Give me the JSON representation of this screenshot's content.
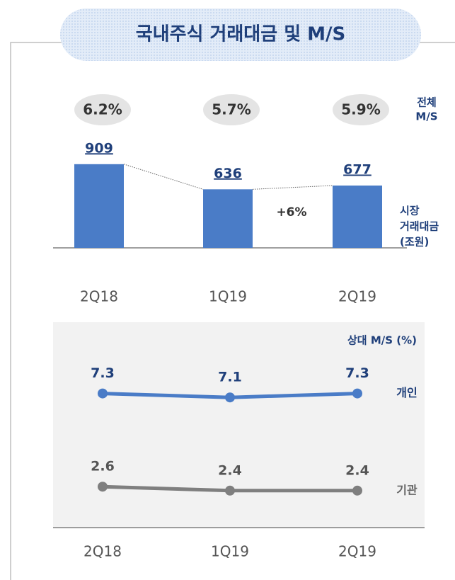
{
  "title": "국내주식 거래대금 및 M/S",
  "chart_data": [
    {
      "type": "bar",
      "categories": [
        "2Q18",
        "1Q19",
        "2Q19"
      ],
      "values": [
        909,
        636,
        677
      ],
      "color": "#4a7cc7",
      "ms_values": [
        6.2,
        5.7,
        5.9
      ],
      "ms_value_labels": [
        "6.2%",
        "5.7%",
        "5.9%"
      ],
      "ms_label": [
        "전체",
        "M/S"
      ],
      "value_label": [
        "시장",
        "거래대금",
        "(조원)"
      ],
      "annotations": [
        "+6%"
      ]
    },
    {
      "type": "line",
      "title": "상대 M/S (%)",
      "categories": [
        "2Q18",
        "1Q19",
        "2Q19"
      ],
      "series": [
        {
          "name": "개인",
          "color": "#4a7cc7",
          "values": [
            7.3,
            7.1,
            7.3
          ]
        },
        {
          "name": "기관",
          "color": "#7f7f7f",
          "values": [
            2.6,
            2.4,
            2.4
          ]
        }
      ]
    }
  ]
}
